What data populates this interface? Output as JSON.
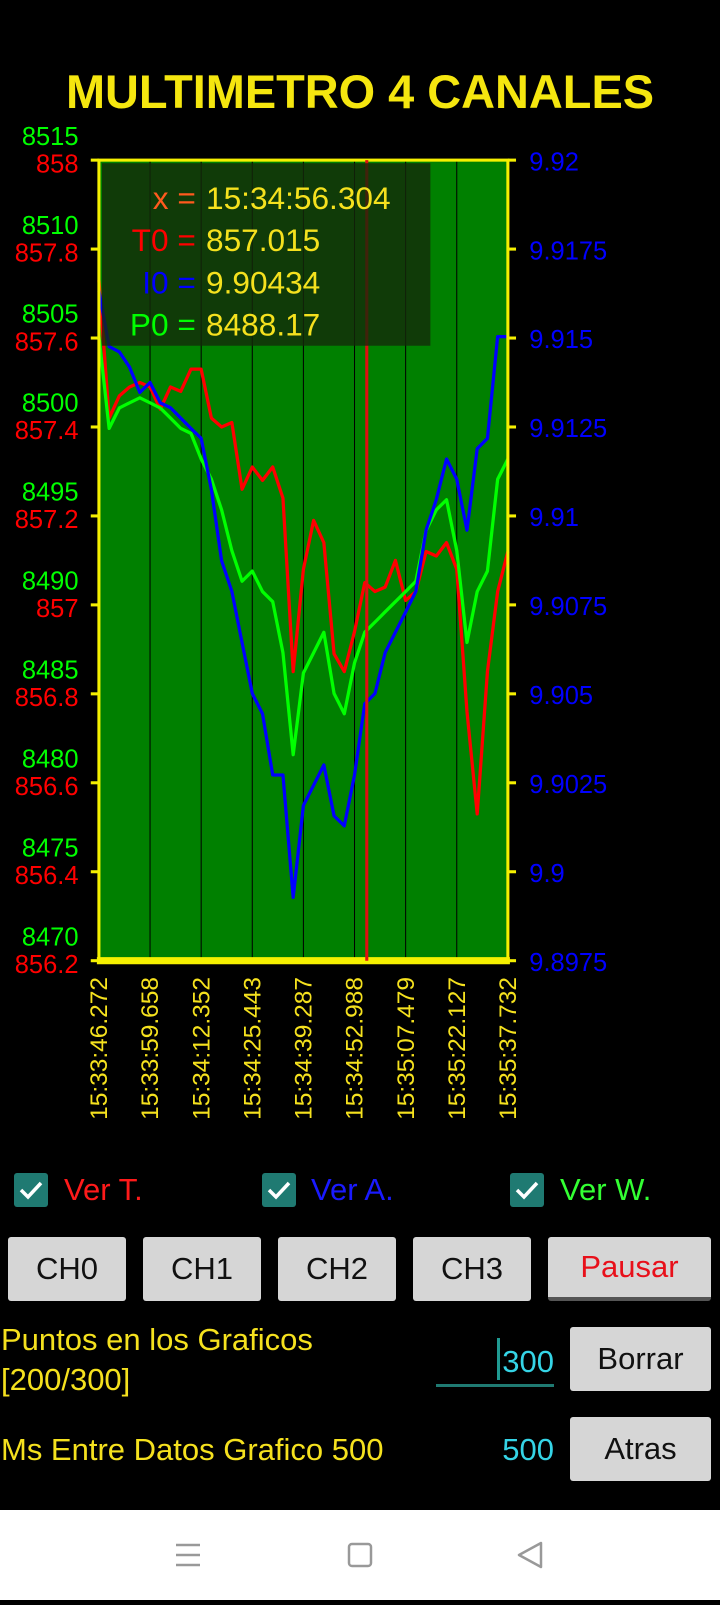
{
  "header": {
    "title": "MULTIMETRO 4 CANALES"
  },
  "chart_data": {
    "type": "line",
    "x": [
      0,
      5,
      10,
      15,
      20,
      25,
      30,
      35,
      40,
      45,
      50,
      55,
      60,
      65,
      70,
      75,
      80,
      85,
      90,
      95,
      100,
      105,
      110,
      115,
      120,
      125,
      130,
      135,
      140,
      145,
      150,
      155,
      160,
      165,
      170,
      175,
      180,
      185,
      190,
      195,
      200
    ],
    "xlim": [
      0,
      200
    ],
    "xticks": [
      {
        "value": 0,
        "label": "15:33:46.272"
      },
      {
        "value": 25,
        "label": "15:33:59.658"
      },
      {
        "value": 50,
        "label": "15:34:12.352"
      },
      {
        "value": 75,
        "label": "15:34:25.443"
      },
      {
        "value": 100,
        "label": "15:34:39.287"
      },
      {
        "value": 125,
        "label": "15:34:52.988"
      },
      {
        "value": 150,
        "label": "15:35:07.479"
      },
      {
        "value": 175,
        "label": "15:35:22.127"
      },
      {
        "value": 200,
        "label": "15:35:37.732"
      }
    ],
    "ylim": [
      856.2,
      858
    ],
    "yticks": [
      856.2,
      856.4,
      856.6,
      856.8,
      857,
      857.2,
      857.4,
      857.6,
      857.8,
      858
    ],
    "y2lim": [
      9.8975,
      9.92
    ],
    "y2ticks": [
      9.8975,
      9.9,
      9.9025,
      9.905,
      9.9075,
      9.91,
      9.9125,
      9.915,
      9.9175,
      9.92
    ],
    "y3lim": [
      8470,
      8515
    ],
    "y3ticks": [
      8470,
      8475,
      8480,
      8485,
      8490,
      8495,
      8500,
      8505,
      8510,
      8515
    ],
    "grid": true,
    "series": [
      {
        "color": "#ff0000",
        "axis": "y",
        "values": [
          857.73,
          857.42,
          857.47,
          857.49,
          857.5,
          857.49,
          857.44,
          857.49,
          857.48,
          857.53,
          857.53,
          857.42,
          857.4,
          857.41,
          857.26,
          857.31,
          857.28,
          857.31,
          857.24,
          856.85,
          857.08,
          857.19,
          857.14,
          856.89,
          856.85,
          856.94,
          857.05,
          857.03,
          857.04,
          857.1,
          857.01,
          857.03,
          857.12,
          857.11,
          857.14,
          857.08,
          856.76,
          856.53,
          856.85,
          857.03,
          857.12
        ]
      },
      {
        "color": "#00ff00",
        "axis": "y3",
        "values": [
          8505.08,
          8499.92,
          8501.07,
          8501.36,
          8501.64,
          8501.36,
          8501.07,
          8500.5,
          8499.92,
          8499.64,
          8498.2,
          8497.06,
          8495.34,
          8493.05,
          8491.33,
          8491.9,
          8490.75,
          8490.18,
          8487.31,
          8481.58,
          8486.17,
          8487.31,
          8488.46,
          8485.02,
          8483.88,
          8486.74,
          8488.46,
          8489.03,
          8489.61,
          8490.18,
          8490.75,
          8491.33,
          8494.19,
          8495.34,
          8495.91,
          8493.05,
          8487.89,
          8490.75,
          8491.9,
          8497.06,
          8498.2
        ]
      },
      {
        "color": "#0000ff",
        "axis": "y2",
        "values": [
          9.91633,
          9.91476,
          9.91461,
          9.91418,
          9.91347,
          9.91375,
          9.91318,
          9.91304,
          9.91275,
          9.91246,
          9.91218,
          9.91074,
          9.90874,
          9.90788,
          9.90644,
          9.90501,
          9.90444,
          9.90272,
          9.90272,
          9.89928,
          9.90186,
          9.90243,
          9.903,
          9.90157,
          9.90129,
          9.90272,
          9.90472,
          9.90501,
          9.90616,
          9.90673,
          9.9073,
          9.90788,
          9.9096,
          9.91046,
          9.9116,
          9.91103,
          9.9096,
          9.91189,
          9.91218,
          9.91504,
          9.91504
        ]
      }
    ],
    "cursor_x": 131,
    "tooltip": [
      {
        "label": "x =",
        "value": "15:34:56.304",
        "color": "#ff5a1e"
      },
      {
        "label": "T0 =",
        "value": 857.015,
        "color": "#ff0000"
      },
      {
        "label": "I0 =",
        "value": 9.90434,
        "color": "#0000ff"
      },
      {
        "label": "P0 =",
        "value": 8488.17,
        "color": "#00ff00"
      }
    ]
  },
  "controls": {
    "checkboxes": [
      {
        "label": "Ver T.",
        "checked": true,
        "color": "#ff1a1a"
      },
      {
        "label": "Ver A.",
        "checked": true,
        "color": "#1a1aff"
      },
      {
        "label": "Ver W.",
        "checked": true,
        "color": "#33ff33"
      }
    ],
    "buttons": [
      "CH0",
      "CH1",
      "CH2",
      "CH3",
      "Pausar"
    ],
    "points": {
      "label": "Puntos en los Graficos [200/300]",
      "input": 300,
      "button": "Borrar"
    },
    "interval": {
      "label": "Ms Entre Datos Grafico 500",
      "input": 500,
      "button": "Atras"
    }
  }
}
